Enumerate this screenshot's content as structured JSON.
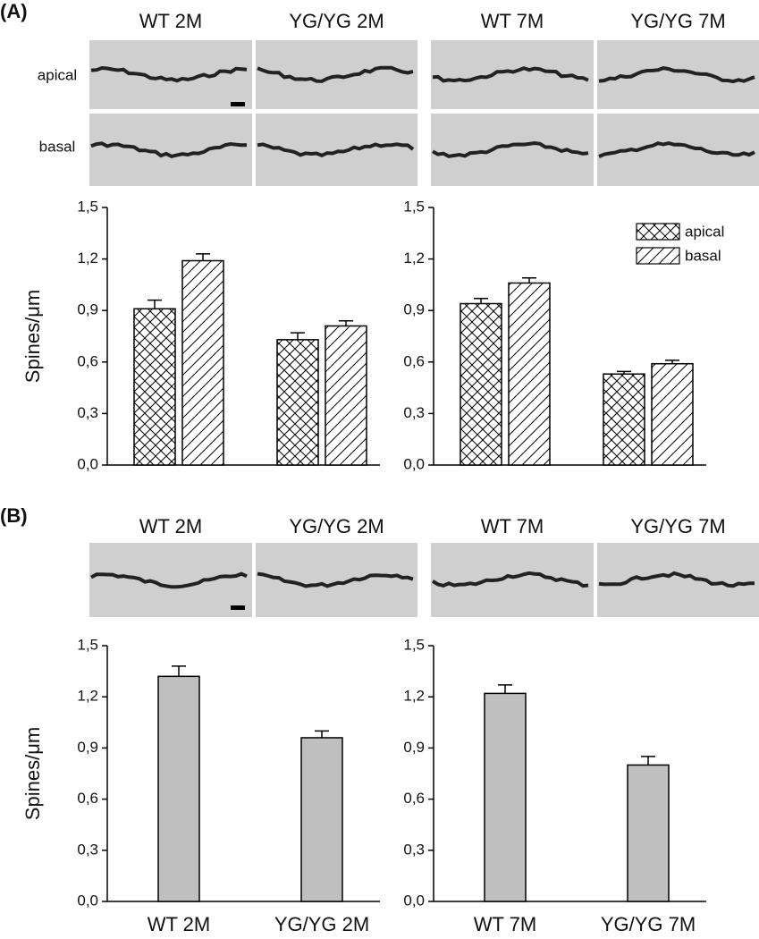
{
  "panels": [
    {
      "label": "(A)",
      "image_labels": [
        "WT 2M",
        "YG/YG 2M",
        "WT 7M",
        "YG/YG 7M"
      ],
      "row_labels": [
        "apical",
        "basal"
      ]
    },
    {
      "label": "(B)",
      "image_labels": [
        "WT 2M",
        "YG/YG 2M",
        "WT 7M",
        "YG/YG 7M"
      ]
    }
  ],
  "chart_data": [
    {
      "type": "bar",
      "ylabel": "Spines/μm",
      "categories": [
        null,
        null
      ],
      "series": [
        {
          "pattern": "crosshatch",
          "values": [
            0.91,
            0.73
          ],
          "errors": [
            0.05,
            0.04
          ]
        },
        {
          "pattern": "hatch",
          "values": [
            1.19,
            0.81
          ],
          "errors": [
            0.04,
            0.03
          ]
        }
      ],
      "ylim": [
        0,
        1.5
      ],
      "yticks": [
        {
          "value": 0,
          "label": "0,0"
        },
        {
          "value": 0.3,
          "label": "0,3"
        },
        {
          "value": 0.6,
          "label": "0,6"
        },
        {
          "value": 0.9,
          "label": "0,9"
        },
        {
          "value": 1.2,
          "label": "1,2"
        },
        {
          "value": 1.5,
          "label": "1,5"
        }
      ]
    },
    {
      "type": "bar",
      "categories": [
        null,
        null
      ],
      "legend": "upper right",
      "series": [
        {
          "name": "apical",
          "pattern": "crosshatch",
          "values": [
            0.94,
            0.53
          ],
          "errors": [
            0.03,
            0.015
          ]
        },
        {
          "name": "basal",
          "pattern": "hatch",
          "values": [
            1.06,
            0.59
          ],
          "errors": [
            0.03,
            0.02
          ]
        }
      ],
      "ylim": [
        0,
        1.5
      ],
      "yticks": [
        {
          "value": 0,
          "label": "0,0"
        },
        {
          "value": 0.3,
          "label": "0,3"
        },
        {
          "value": 0.6,
          "label": "0,6"
        },
        {
          "value": 0.9,
          "label": "0,9"
        },
        {
          "value": 1.2,
          "label": "1,2"
        },
        {
          "value": 1.5,
          "label": "1,5"
        }
      ]
    },
    {
      "type": "bar",
      "ylabel": "Spines/μm",
      "categories": [
        "WT 2M",
        "YG/YG 2M"
      ],
      "series": [
        {
          "color": "#c0c0c0",
          "values": [
            1.32,
            0.96
          ],
          "errors": [
            0.06,
            0.04
          ]
        }
      ],
      "ylim": [
        0,
        1.5
      ],
      "yticks": [
        {
          "value": 0,
          "label": "0,0"
        },
        {
          "value": 0.3,
          "label": "0,3"
        },
        {
          "value": 0.6,
          "label": "0,6"
        },
        {
          "value": 0.9,
          "label": "0,9"
        },
        {
          "value": 1.2,
          "label": "1,2"
        },
        {
          "value": 1.5,
          "label": "1,5"
        }
      ]
    },
    {
      "type": "bar",
      "categories": [
        "WT 7M",
        "YG/YG 7M"
      ],
      "series": [
        {
          "color": "#c0c0c0",
          "values": [
            1.22,
            0.8
          ],
          "errors": [
            0.05,
            0.05
          ]
        }
      ],
      "ylim": [
        0,
        1.5
      ],
      "yticks": [
        {
          "value": 0,
          "label": "0,0"
        },
        {
          "value": 0.3,
          "label": "0,3"
        },
        {
          "value": 0.6,
          "label": "0,6"
        },
        {
          "value": 0.9,
          "label": "0,9"
        },
        {
          "value": 1.2,
          "label": "1,2"
        },
        {
          "value": 1.5,
          "label": "1,5"
        }
      ]
    }
  ]
}
